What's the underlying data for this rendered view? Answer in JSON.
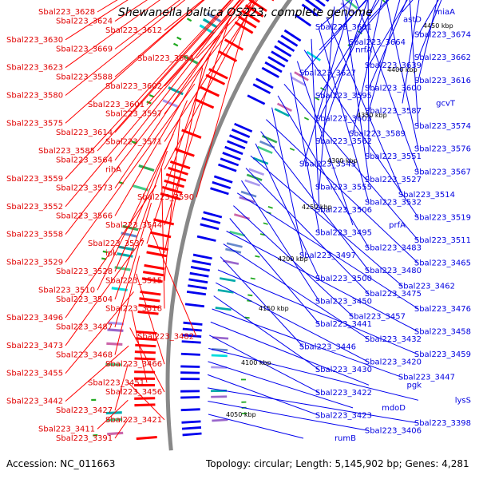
{
  "title": "Shewanella baltica OS223, complete genome",
  "accession": "Accession: NC_011663",
  "topology": "Topology: circular; Length: 5,145,902 bp; Genes: 4,281",
  "colors": {
    "left_gene": "#ff0000",
    "right_gene": "#0000ee",
    "backbone": "#888888",
    "feature_cyan": "#00e5e5",
    "feature_green": "#22aa22"
  },
  "ticks": [
    "4450 kbp",
    "4400 kbp",
    "4350 kbp",
    "4300 kbp",
    "4250 kbp",
    "4200 kbp",
    "4150 kbp",
    "4100 kbp",
    "4050 kbp"
  ],
  "left_labels": [
    "Sbal223_3628",
    "Sbal223_3624",
    "Sbal223_3612",
    "Sbal223_3630",
    "Sbal223_3669",
    "Sbal223_3604",
    "Sbal223_3623",
    "Sbal223_3588",
    "Sbal223_3602",
    "Sbal223_3580",
    "Sbal223_3601",
    "Sbal223_3597",
    "Sbal223_3575",
    "Sbal223_3614",
    "Sbal223_3571",
    "Sbal223_3585",
    "Sbal223_3564",
    "rihA",
    "Sbal223_3559",
    "Sbal223_3573",
    "Sbal223_3590",
    "Sbal223_3552",
    "Sbal223_3566",
    "Sbal223_3544",
    "Sbal223_3558",
    "Sbal223_3537",
    "ipk",
    "Sbal223_3529",
    "Sbal223_3528",
    "Sbal223_3515",
    "Sbal223_3510",
    "Sbal223_3504",
    "Sbal223_3518",
    "Sbal223_3496",
    "Sbal223_3487",
    "Sbal223_3482",
    "Sbal223_3473",
    "Sbal223_3468",
    "Sbal223_3466",
    "Sbal223_3455",
    "Sbal223_3451",
    "Sbal223_3456",
    "Sbal223_3442",
    "Sbal223_3427",
    "Sbal223_3421",
    "Sbal223_3411",
    "Sbal223_3391"
  ],
  "right_labels": [
    "miaA",
    "astD",
    "Sbal223_3681",
    "Sbal223_3674",
    "Sbal223_3664",
    "nrfA",
    "Sbal223_3662",
    "Sbal223_3639",
    "Sbal223_3627",
    "Sbal223_3616",
    "Sbal223_3600",
    "Sbal223_3595",
    "gcvT",
    "Sbal223_3587",
    "Sbal223_3603",
    "Sbal223_3574",
    "Sbal223_3589",
    "Sbal223_3562",
    "Sbal223_3576",
    "Sbal223_3551",
    "Sbal223_3543",
    "Sbal223_3567",
    "Sbal223_3527",
    "Sbal223_3555",
    "Sbal223_3514",
    "Sbal223_3532",
    "Sbal223_3506",
    "Sbal223_3519",
    "prfA",
    "Sbal223_3495",
    "Sbal223_3511",
    "Sbal223_3483",
    "Sbal223_3497",
    "Sbal223_3465",
    "Sbal223_3480",
    "Sbal223_3500",
    "Sbal223_3462",
    "Sbal223_3475",
    "Sbal223_3450",
    "Sbal223_3476",
    "Sbal223_3457",
    "Sbal223_3441",
    "Sbal223_3458",
    "Sbal223_3432",
    "Sbal223_3446",
    "Sbal223_3459",
    "Sbal223_3420",
    "Sbal223_3430",
    "Sbal223_3447",
    "pgk",
    "Sbal223_3422",
    "lysS",
    "mdoD",
    "Sbal223_3423",
    "Sbal223_3398",
    "Sbal223_3406",
    "rumB"
  ]
}
